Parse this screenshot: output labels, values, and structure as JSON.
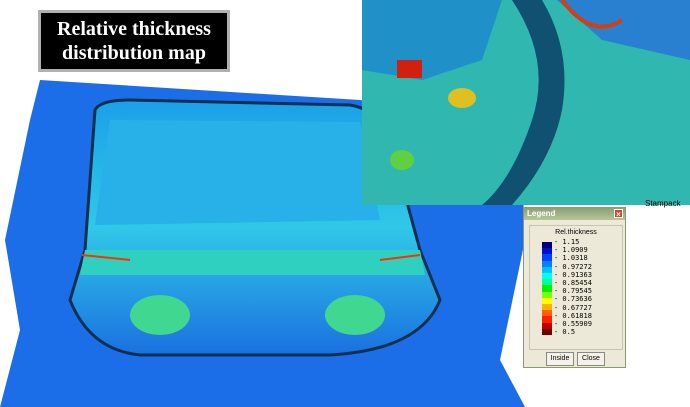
{
  "title": {
    "line1": "Relative thickness",
    "line2": "distribution map"
  },
  "credit": "Stampack",
  "legend": {
    "window_title": "Legend",
    "heading": "Rel.thickness",
    "labels": [
      "1.15",
      "1.0909",
      "1.0318",
      "0.97272",
      "0.91363",
      "0.85454",
      "0.79545",
      "0.73636",
      "0.67727",
      "0.61818",
      "0.55909",
      "0.5"
    ],
    "colors": [
      "#00007a",
      "#0010c8",
      "#0040ff",
      "#0080ff",
      "#00c0ff",
      "#00ffff",
      "#00ff90",
      "#00f000",
      "#80ff00",
      "#ffff00",
      "#ffb000",
      "#ff6000",
      "#ff2000",
      "#c00000",
      "#700000"
    ],
    "buttons": {
      "inside": "Inside",
      "close": "Close"
    }
  }
}
